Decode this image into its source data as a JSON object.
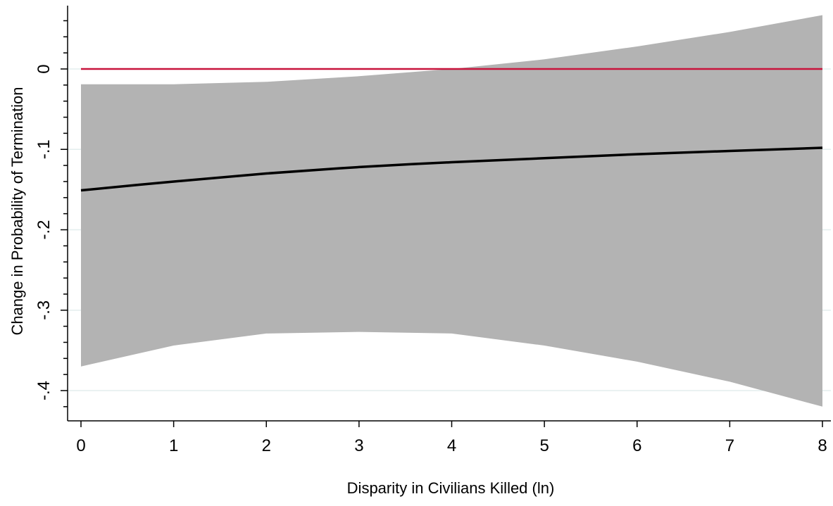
{
  "chart_data": {
    "type": "line",
    "title": "",
    "xlabel": "Disparity in Civilians Killed (ln)",
    "ylabel": "Change in Probability of Termination",
    "xlim": [
      0,
      8
    ],
    "ylim": [
      -0.43,
      0.08
    ],
    "x_ticks": [
      0,
      1,
      2,
      3,
      4,
      5,
      6,
      7,
      8
    ],
    "x_tick_labels": [
      "0",
      "1",
      "2",
      "3",
      "4",
      "5",
      "6",
      "7",
      "8"
    ],
    "y_ticks": [
      0,
      -0.1,
      -0.2,
      -0.3,
      -0.4
    ],
    "y_tick_labels": [
      "0",
      "-.1",
      "-.2",
      "-.3",
      "-.4"
    ],
    "grid": "horizontal",
    "legend": "none",
    "series": [
      {
        "role": "estimate",
        "x": [
          0,
          1,
          2,
          3,
          4,
          5,
          6,
          7,
          8
        ],
        "y": [
          -0.151,
          -0.14,
          -0.13,
          -0.122,
          -0.116,
          -0.111,
          -0.106,
          -0.102,
          -0.098
        ]
      }
    ],
    "confidence_band": {
      "x": [
        0,
        1,
        2,
        3,
        4,
        5,
        6,
        7,
        8
      ],
      "upper": [
        -0.019,
        -0.019,
        -0.016,
        -0.009,
        0.0,
        0.012,
        0.028,
        0.046,
        0.067
      ],
      "lower": [
        -0.37,
        -0.344,
        -0.329,
        -0.327,
        -0.329,
        -0.344,
        -0.364,
        -0.389,
        -0.42
      ]
    },
    "reference_line": {
      "y": 0
    },
    "colors": {
      "band": "#b3b3b3",
      "line": "#000000",
      "reference": "#c8143c",
      "grid": "#e3eeee"
    }
  }
}
